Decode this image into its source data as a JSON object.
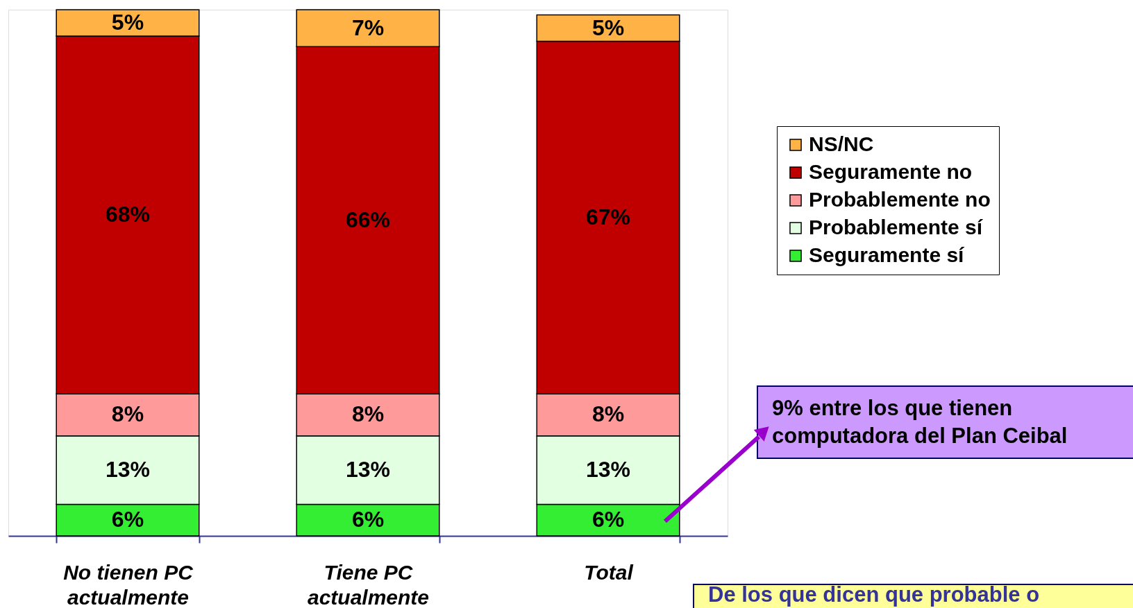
{
  "chart_data": {
    "type": "bar",
    "stacked": true,
    "categories": [
      "No tienen PC\nactualmente",
      "Tiene PC\nactualmente",
      "Total"
    ],
    "series": [
      {
        "name": "Seguramente sí",
        "color": "#33ee33",
        "values": [
          6,
          6,
          6
        ],
        "value_labels": [
          "6%",
          "6%",
          "6%"
        ]
      },
      {
        "name": "Probablemente sí",
        "color": "#e2ffe2",
        "values": [
          13,
          13,
          13
        ],
        "value_labels": [
          "13%",
          "13%",
          "13%"
        ]
      },
      {
        "name": "Probablemente no",
        "color": "#ff9a9a",
        "values": [
          8,
          8,
          8
        ],
        "value_labels": [
          "8%",
          "8%",
          "8%"
        ]
      },
      {
        "name": "Seguramente no",
        "color": "#c00000",
        "values": [
          68,
          66,
          67
        ],
        "value_labels": [
          "68%",
          "66%",
          "67%"
        ]
      },
      {
        "name": "NS/NC",
        "color": "#ffb347",
        "values": [
          5,
          7,
          5
        ],
        "value_labels": [
          "5%",
          "7%",
          "5%"
        ]
      }
    ],
    "legend": "right",
    "annotations": [
      "9% entre los que tienen\ncomputadora del Plan Ceibal",
      "De los que dicen que probable o"
    ]
  }
}
